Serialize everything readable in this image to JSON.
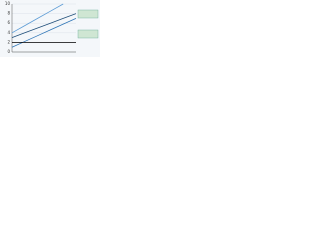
{
  "chart_data": {
    "type": "line",
    "x": [
      0,
      2,
      4,
      6,
      8,
      10
    ],
    "series": [
      {
        "color": "#1f4e79",
        "values": [
          3,
          4,
          5,
          6,
          7,
          8
        ]
      },
      {
        "color": "#2e75b6",
        "values": [
          1,
          2.2,
          3.4,
          4.6,
          5.8,
          7
        ]
      },
      {
        "color": "#5b9bd5",
        "values": [
          4,
          5.5,
          7,
          8.5,
          10,
          null
        ]
      },
      {
        "color": "#000000",
        "values": [
          2,
          2,
          2,
          2,
          2,
          2
        ]
      }
    ],
    "xlim": [
      0,
      10
    ],
    "ylim": [
      0,
      10
    ],
    "yticks": [
      0,
      2,
      4,
      6,
      8,
      10
    ],
    "grid": true
  }
}
